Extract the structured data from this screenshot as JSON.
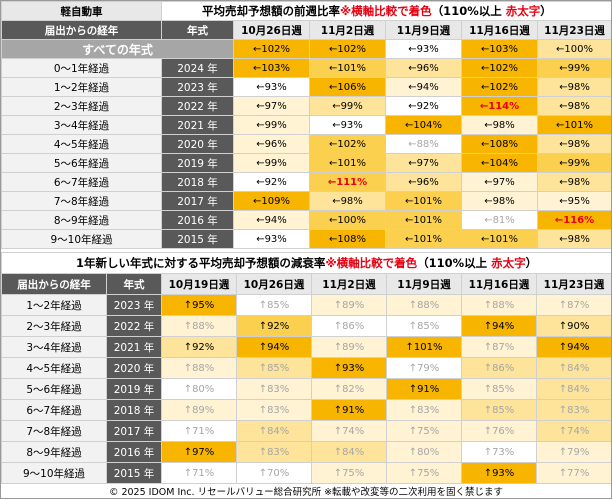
{
  "top": {
    "corner": "軽自動車",
    "title": "平均売却予想額の前週比率",
    "note": "※横軸比較で着色",
    "rule_open": "（110%以上 ",
    "rule_em": "赤太字",
    "rule_close": "）",
    "head_age": "届出からの経年",
    "head_year": "年式",
    "weeks": [
      "10月26日週",
      "11月2日週",
      "11月9日週",
      "11月16日週",
      "11月23日週"
    ],
    "all_label": "すべての年式",
    "all_cells": [
      {
        "t": "←102%",
        "bg": "#f7b500"
      },
      {
        "t": "←102%",
        "bg": "#f7b500"
      },
      {
        "t": "←93%",
        "bg": "#ffffff"
      },
      {
        "t": "←103%",
        "bg": "#f7b500"
      },
      {
        "t": "←100%",
        "bg": "#fde49a"
      }
    ],
    "rows": [
      {
        "age": "0～1年経過",
        "year": "2024 年",
        "cells": [
          {
            "t": "←103%",
            "bg": "#f7b500"
          },
          {
            "t": "←101%",
            "bg": "#fbd04f"
          },
          {
            "t": "←96%",
            "bg": "#fde49a"
          },
          {
            "t": "←102%",
            "bg": "#f7b500"
          },
          {
            "t": "←99%",
            "bg": "#fbd04f"
          }
        ]
      },
      {
        "age": "1～2年経過",
        "year": "2023 年",
        "cells": [
          {
            "t": "←93%",
            "bg": "#ffffff"
          },
          {
            "t": "←106%",
            "bg": "#f7b500"
          },
          {
            "t": "←94%",
            "bg": "#fff3d4"
          },
          {
            "t": "←102%",
            "bg": "#f7b500"
          },
          {
            "t": "←98%",
            "bg": "#fde49a"
          }
        ]
      },
      {
        "age": "2～3年経過",
        "year": "2022 年",
        "cells": [
          {
            "t": "←97%",
            "bg": "#fff3d4"
          },
          {
            "t": "←99%",
            "bg": "#fde49a"
          },
          {
            "t": "←92%",
            "bg": "#ffffff"
          },
          {
            "t": "←114%",
            "bg": "#f7b500",
            "fg": "#e60012"
          },
          {
            "t": "←98%",
            "bg": "#fde49a"
          }
        ]
      },
      {
        "age": "3～4年経過",
        "year": "2021 年",
        "cells": [
          {
            "t": "←99%",
            "bg": "#fff3d4"
          },
          {
            "t": "←93%",
            "bg": "#ffffff"
          },
          {
            "t": "←104%",
            "bg": "#f7b500"
          },
          {
            "t": "←98%",
            "bg": "#fff3d4"
          },
          {
            "t": "←101%",
            "bg": "#f7b500"
          }
        ]
      },
      {
        "age": "4～5年経過",
        "year": "2020 年",
        "cells": [
          {
            "t": "←96%",
            "bg": "#fff3d4"
          },
          {
            "t": "←102%",
            "bg": "#fbd04f"
          },
          {
            "t": "←88%",
            "bg": "#ffffff",
            "fg": "#a6a6a6"
          },
          {
            "t": "←108%",
            "bg": "#f7b500"
          },
          {
            "t": "←98%",
            "bg": "#fde49a"
          }
        ]
      },
      {
        "age": "5～6年経過",
        "year": "2019 年",
        "cells": [
          {
            "t": "←99%",
            "bg": "#fff3d4"
          },
          {
            "t": "←101%",
            "bg": "#fbd04f"
          },
          {
            "t": "←97%",
            "bg": "#fde49a"
          },
          {
            "t": "←104%",
            "bg": "#f7b500"
          },
          {
            "t": "←99%",
            "bg": "#fbd04f"
          }
        ]
      },
      {
        "age": "6～7年経過",
        "year": "2018 年",
        "cells": [
          {
            "t": "←92%",
            "bg": "#ffffff"
          },
          {
            "t": "←111%",
            "bg": "#fbd04f",
            "fg": "#e60012"
          },
          {
            "t": "←96%",
            "bg": "#fde49a"
          },
          {
            "t": "←97%",
            "bg": "#fff3d4"
          },
          {
            "t": "←98%",
            "bg": "#fde49a"
          }
        ]
      },
      {
        "age": "7～8年経過",
        "year": "2017 年",
        "cells": [
          {
            "t": "←109%",
            "bg": "#f7b500"
          },
          {
            "t": "←98%",
            "bg": "#fde49a"
          },
          {
            "t": "←101%",
            "bg": "#fbd04f"
          },
          {
            "t": "←98%",
            "bg": "#fff3d4"
          },
          {
            "t": "←95%",
            "bg": "#fff3d4"
          }
        ]
      },
      {
        "age": "8～9年経過",
        "year": "2016 年",
        "cells": [
          {
            "t": "←94%",
            "bg": "#fff3d4"
          },
          {
            "t": "←100%",
            "bg": "#fbd04f"
          },
          {
            "t": "←101%",
            "bg": "#fbd04f"
          },
          {
            "t": "←81%",
            "bg": "#ffffff",
            "fg": "#a6a6a6"
          },
          {
            "t": "←116%",
            "bg": "#f7b500",
            "fg": "#e60012"
          }
        ]
      },
      {
        "age": "9～10年経過",
        "year": "2015 年",
        "cells": [
          {
            "t": "←93%",
            "bg": "#ffffff"
          },
          {
            "t": "←108%",
            "bg": "#f7b500"
          },
          {
            "t": "←101%",
            "bg": "#fbd04f"
          },
          {
            "t": "←101%",
            "bg": "#fbd04f"
          },
          {
            "t": "←98%",
            "bg": "#fde49a"
          }
        ]
      }
    ]
  },
  "bottom": {
    "title": "1年新しい年式に対する平均売却予想額の減衰率",
    "note": "※横軸比較で着色",
    "rule_open": "（110%以上 ",
    "rule_em": "赤太字",
    "rule_close": "）",
    "head_age": "届出からの経年",
    "head_year": "年式",
    "weeks": [
      "10月19日週",
      "10月26日週",
      "11月2日週",
      "11月9日週",
      "11月16日週",
      "11月23日週"
    ],
    "rows": [
      {
        "age": "1～2年経過",
        "year": "2023 年",
        "cells": [
          {
            "t": "↑95%",
            "bg": "#f7b500"
          },
          {
            "t": "↑85%",
            "bg": "#ffffff",
            "fg": "#a6a6a6"
          },
          {
            "t": "↑89%",
            "bg": "#fff3d4",
            "fg": "#a6a6a6"
          },
          {
            "t": "↑88%",
            "bg": "#fff3d4",
            "fg": "#a6a6a6"
          },
          {
            "t": "↑88%",
            "bg": "#fff3d4",
            "fg": "#a6a6a6"
          },
          {
            "t": "↑87%",
            "bg": "#fff3d4",
            "fg": "#a6a6a6"
          }
        ]
      },
      {
        "age": "2～3年経過",
        "year": "2022 年",
        "cells": [
          {
            "t": "↑88%",
            "bg": "#fff3d4",
            "fg": "#a6a6a6"
          },
          {
            "t": "↑92%",
            "bg": "#fbd04f"
          },
          {
            "t": "↑86%",
            "bg": "#ffffff",
            "fg": "#a6a6a6"
          },
          {
            "t": "↑85%",
            "bg": "#ffffff",
            "fg": "#a6a6a6"
          },
          {
            "t": "↑94%",
            "bg": "#f7b500"
          },
          {
            "t": "↑90%",
            "bg": "#fde49a"
          }
        ]
      },
      {
        "age": "3～4年経過",
        "year": "2021 年",
        "cells": [
          {
            "t": "↑92%",
            "bg": "#fde49a"
          },
          {
            "t": "↑94%",
            "bg": "#f7b500"
          },
          {
            "t": "↑89%",
            "bg": "#fff3d4",
            "fg": "#a6a6a6"
          },
          {
            "t": "↑101%",
            "bg": "#f7b500"
          },
          {
            "t": "↑87%",
            "bg": "#fff3d4",
            "fg": "#a6a6a6"
          },
          {
            "t": "↑94%",
            "bg": "#f7b500"
          }
        ]
      },
      {
        "age": "4～5年経過",
        "year": "2020 年",
        "cells": [
          {
            "t": "↑88%",
            "bg": "#fff3d4",
            "fg": "#a6a6a6"
          },
          {
            "t": "↑85%",
            "bg": "#fde49a",
            "fg": "#a6a6a6"
          },
          {
            "t": "↑93%",
            "bg": "#f7b500"
          },
          {
            "t": "↑79%",
            "bg": "#ffffff",
            "fg": "#a6a6a6"
          },
          {
            "t": "↑86%",
            "bg": "#fde49a",
            "fg": "#a6a6a6"
          },
          {
            "t": "↑84%",
            "bg": "#fde49a",
            "fg": "#a6a6a6"
          }
        ]
      },
      {
        "age": "5～6年経過",
        "year": "2019 年",
        "cells": [
          {
            "t": "↑80%",
            "bg": "#ffffff",
            "fg": "#a6a6a6"
          },
          {
            "t": "↑83%",
            "bg": "#fff3d4",
            "fg": "#a6a6a6"
          },
          {
            "t": "↑82%",
            "bg": "#fff3d4",
            "fg": "#a6a6a6"
          },
          {
            "t": "↑91%",
            "bg": "#f7b500"
          },
          {
            "t": "↑85%",
            "bg": "#fff3d4",
            "fg": "#a6a6a6"
          },
          {
            "t": "↑84%",
            "bg": "#fde49a",
            "fg": "#a6a6a6"
          }
        ]
      },
      {
        "age": "6～7年経過",
        "year": "2018 年",
        "cells": [
          {
            "t": "↑89%",
            "bg": "#fff3d4",
            "fg": "#a6a6a6"
          },
          {
            "t": "↑83%",
            "bg": "#fff3d4",
            "fg": "#a6a6a6"
          },
          {
            "t": "↑91%",
            "bg": "#f7b500"
          },
          {
            "t": "↑83%",
            "bg": "#fff3d4",
            "fg": "#a6a6a6"
          },
          {
            "t": "↑85%",
            "bg": "#fde49a",
            "fg": "#a6a6a6"
          },
          {
            "t": "↑83%",
            "bg": "#fde49a",
            "fg": "#a6a6a6"
          }
        ]
      },
      {
        "age": "7～8年経過",
        "year": "2017 年",
        "cells": [
          {
            "t": "↑71%",
            "bg": "#ffffff",
            "fg": "#a6a6a6"
          },
          {
            "t": "↑84%",
            "bg": "#fde49a",
            "fg": "#a6a6a6"
          },
          {
            "t": "↑74%",
            "bg": "#fff3d4",
            "fg": "#a6a6a6"
          },
          {
            "t": "↑75%",
            "bg": "#fff3d4",
            "fg": "#a6a6a6"
          },
          {
            "t": "↑76%",
            "bg": "#fff3d4",
            "fg": "#a6a6a6"
          },
          {
            "t": "↑74%",
            "bg": "#fde49a",
            "fg": "#a6a6a6"
          }
        ]
      },
      {
        "age": "8～9年経過",
        "year": "2016 年",
        "cells": [
          {
            "t": "↑97%",
            "bg": "#f7b500"
          },
          {
            "t": "↑83%",
            "bg": "#fde49a",
            "fg": "#a6a6a6"
          },
          {
            "t": "↑84%",
            "bg": "#fde49a",
            "fg": "#a6a6a6"
          },
          {
            "t": "↑80%",
            "bg": "#fff3d4",
            "fg": "#a6a6a6"
          },
          {
            "t": "↑73%",
            "bg": "#ffffff",
            "fg": "#a6a6a6"
          },
          {
            "t": "↑79%",
            "bg": "#fff3d4",
            "fg": "#a6a6a6"
          }
        ]
      },
      {
        "age": "9～10年経過",
        "year": "2015 年",
        "cells": [
          {
            "t": "↑71%",
            "bg": "#ffffff",
            "fg": "#a6a6a6"
          },
          {
            "t": "↑70%",
            "bg": "#ffffff",
            "fg": "#a6a6a6"
          },
          {
            "t": "↑75%",
            "bg": "#fff3d4",
            "fg": "#a6a6a6"
          },
          {
            "t": "↑75%",
            "bg": "#fff3d4",
            "fg": "#a6a6a6"
          },
          {
            "t": "↑93%",
            "bg": "#f7b500"
          },
          {
            "t": "↑77%",
            "bg": "#fff3d4",
            "fg": "#a6a6a6"
          }
        ]
      }
    ]
  },
  "footer": "© 2025 IDOM Inc. リセールバリュー総合研究所 ※転載や改変等の二次利用を固く禁じます"
}
